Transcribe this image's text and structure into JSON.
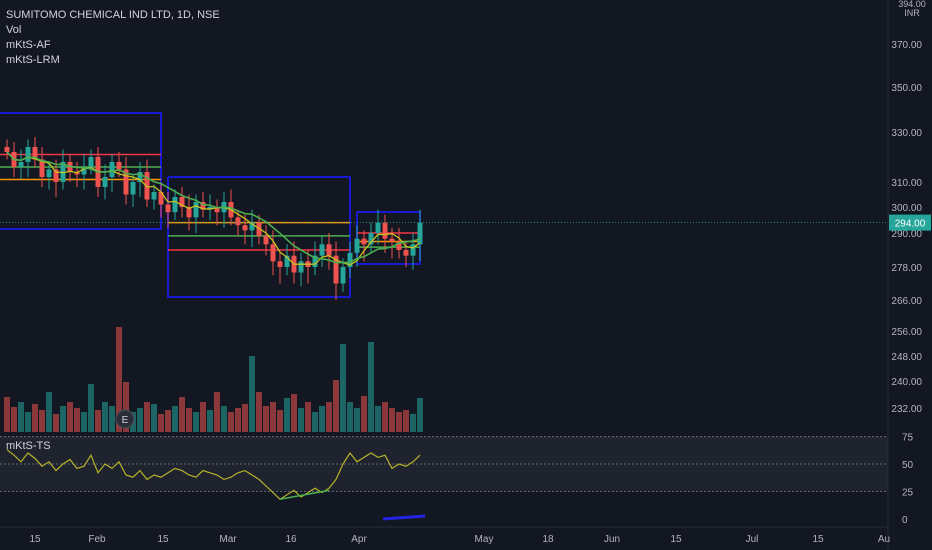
{
  "header": {
    "symbol_line": "SUMITOMO CHEMICAL IND LTD, 1D, NSE",
    "indicators": [
      "Vol",
      "mKtS-AF",
      "mKtS-LRM"
    ]
  },
  "currency": {
    "top": "394.00",
    "bottom": "INR"
  },
  "price_axis": {
    "ticks": [
      "370.00",
      "350.00",
      "330.00",
      "310.00",
      "300.00",
      "290.00",
      "278.00",
      "266.00",
      "256.00",
      "248.00",
      "240.00",
      "232.00"
    ],
    "last_price": "294.00"
  },
  "oscillator": {
    "name": "mKtS-TS",
    "ticks": [
      "75",
      "50",
      "25",
      "0"
    ]
  },
  "time_axis": {
    "ticks": [
      "15",
      "Feb",
      "15",
      "Mar",
      "16",
      "Apr",
      "May",
      "18",
      "Jun",
      "15",
      "Jul",
      "15",
      "Au"
    ]
  },
  "earnings_marker": "E",
  "colors": {
    "background": "#131722",
    "up": "#26a69a",
    "down": "#ef5350",
    "channel": "#1a1ad0",
    "ma_green": "#4caf50",
    "ma_yellow": "#c7c320",
    "level_red": "#f23645",
    "level_orange": "#ff9800",
    "last_price_bg": "#26a69a"
  },
  "chart_data": {
    "type": "candlestick",
    "title": "SUMITOMO CHEMICAL IND LTD, 1D, NSE",
    "x_period": "2021-01-11 to 2021-04-16 (daily)",
    "ohlc_sample": [
      {
        "date": "Jan",
        "open": 320,
        "high": 328,
        "low": 310,
        "close": 324
      },
      {
        "date": "Feb",
        "open": 316,
        "high": 322,
        "low": 305,
        "close": 310
      },
      {
        "date": "Mar",
        "open": 303,
        "high": 312,
        "low": 295,
        "close": 300
      },
      {
        "date": "16 Mar",
        "open": 282,
        "high": 288,
        "low": 268,
        "close": 276
      },
      {
        "date": "Apr",
        "open": 288,
        "high": 298,
        "low": 280,
        "close": 294
      }
    ],
    "ylim": [
      226,
      394
    ],
    "last_close": 294,
    "volume_series": "volume histogram below price",
    "oscillator": {
      "name": "mKtS-TS",
      "ylim": [
        0,
        80
      ],
      "levels": [
        25,
        50,
        75
      ]
    }
  }
}
